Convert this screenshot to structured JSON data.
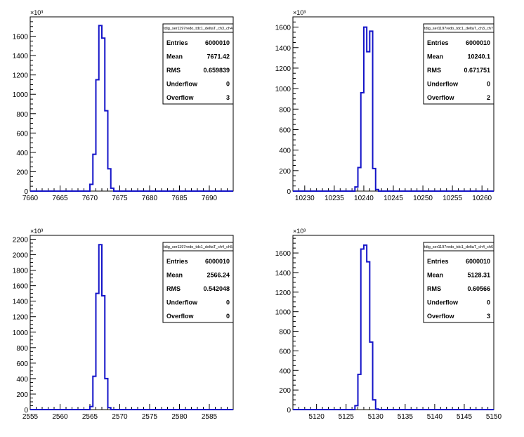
{
  "chart_data": [
    {
      "type": "histogram",
      "stats_title": "tdig_ser1197redo_tdc1_deltaT_ch3_ch4",
      "x_exponent_label": "×10³",
      "xlim": [
        7660,
        7694
      ],
      "ylim": [
        0,
        1800
      ],
      "x_ticks": [
        7660,
        7665,
        7670,
        7675,
        7680,
        7685,
        7690
      ],
      "y_ticks": [
        0,
        200,
        400,
        600,
        800,
        1000,
        1200,
        1400,
        1600
      ],
      "bin_width": 0.5,
      "bins": [
        [
          7669.5,
          0
        ],
        [
          7670.0,
          70
        ],
        [
          7670.5,
          380
        ],
        [
          7671.0,
          1150
        ],
        [
          7671.5,
          1710
        ],
        [
          7672.0,
          1580
        ],
        [
          7672.5,
          830
        ],
        [
          7673.0,
          230
        ],
        [
          7673.5,
          30
        ],
        [
          7674.0,
          0
        ]
      ],
      "stats": [
        {
          "label": "Entries",
          "value": "6000010"
        },
        {
          "label": "Mean",
          "value": "7671.42"
        },
        {
          "label": "RMS",
          "value": "0.659839"
        },
        {
          "label": "Underflow",
          "value": "0"
        },
        {
          "label": "Overflow",
          "value": "3"
        }
      ]
    },
    {
      "type": "histogram",
      "stats_title": "tdig_ser1197redo_tdc1_deltaT_ch3_ch7",
      "x_exponent_label": "×10³",
      "xlim": [
        10228,
        10262
      ],
      "ylim": [
        0,
        1700
      ],
      "x_ticks": [
        10230,
        10235,
        10240,
        10245,
        10250,
        10255,
        10260
      ],
      "y_ticks": [
        0,
        200,
        400,
        600,
        800,
        1000,
        1200,
        1400,
        1600
      ],
      "bin_width": 0.5,
      "bins": [
        [
          10238.0,
          0
        ],
        [
          10238.5,
          40
        ],
        [
          10239.0,
          230
        ],
        [
          10239.5,
          960
        ],
        [
          10240.0,
          1600
        ],
        [
          10240.5,
          1360
        ],
        [
          10241.0,
          1560
        ],
        [
          10241.5,
          220
        ],
        [
          10242.0,
          15
        ],
        [
          10242.5,
          0
        ]
      ],
      "stats": [
        {
          "label": "Entries",
          "value": "6000010"
        },
        {
          "label": "Mean",
          "value": "10240.1"
        },
        {
          "label": "RMS",
          "value": "0.671751"
        },
        {
          "label": "Underflow",
          "value": "0"
        },
        {
          "label": "Overflow",
          "value": "2"
        }
      ]
    },
    {
      "type": "histogram",
      "stats_title": "tdig_ser1197redo_tdc1_deltaT_ch4_ch5",
      "x_exponent_label": "×10³",
      "xlim": [
        2555,
        2589
      ],
      "ylim": [
        0,
        2250
      ],
      "x_ticks": [
        2555,
        2560,
        2565,
        2570,
        2575,
        2580,
        2585
      ],
      "y_ticks": [
        0,
        200,
        400,
        600,
        800,
        1000,
        1200,
        1400,
        1600,
        1800,
        2000,
        2200
      ],
      "bin_width": 0.5,
      "bins": [
        [
          2564.5,
          0
        ],
        [
          2565.0,
          40
        ],
        [
          2565.5,
          430
        ],
        [
          2566.0,
          1500
        ],
        [
          2566.5,
          2130
        ],
        [
          2567.0,
          1470
        ],
        [
          2567.5,
          400
        ],
        [
          2568.0,
          25
        ],
        [
          2568.5,
          0
        ]
      ],
      "stats": [
        {
          "label": "Entries",
          "value": "6000010"
        },
        {
          "label": "Mean",
          "value": "2566.24"
        },
        {
          "label": "RMS",
          "value": "0.542048"
        },
        {
          "label": "Underflow",
          "value": "0"
        },
        {
          "label": "Overflow",
          "value": "0"
        }
      ]
    },
    {
      "type": "histogram",
      "stats_title": "tdig_ser1197redo_tdc1_deltaT_ch4_ch6",
      "x_exponent_label": "×10³",
      "xlim": [
        5116,
        5150
      ],
      "ylim": [
        0,
        1780
      ],
      "x_ticks": [
        5120,
        5125,
        5130,
        5135,
        5140,
        5145,
        5150
      ],
      "y_ticks": [
        0,
        200,
        400,
        600,
        800,
        1000,
        1200,
        1400,
        1600
      ],
      "bin_width": 0.5,
      "bins": [
        [
          5126.0,
          0
        ],
        [
          5126.5,
          40
        ],
        [
          5127.0,
          360
        ],
        [
          5127.5,
          1640
        ],
        [
          5128.0,
          1680
        ],
        [
          5128.5,
          1510
        ],
        [
          5129.0,
          690
        ],
        [
          5129.5,
          100
        ],
        [
          5130.0,
          5
        ],
        [
          5130.5,
          0
        ]
      ],
      "stats": [
        {
          "label": "Entries",
          "value": "6000010"
        },
        {
          "label": "Mean",
          "value": "5128.31"
        },
        {
          "label": "RMS",
          "value": "0.60566"
        },
        {
          "label": "Underflow",
          "value": "0"
        },
        {
          "label": "Overflow",
          "value": "3"
        }
      ]
    }
  ],
  "colors": {
    "line": "#1414c8",
    "frame": "#000000",
    "background": "#ffffff"
  }
}
